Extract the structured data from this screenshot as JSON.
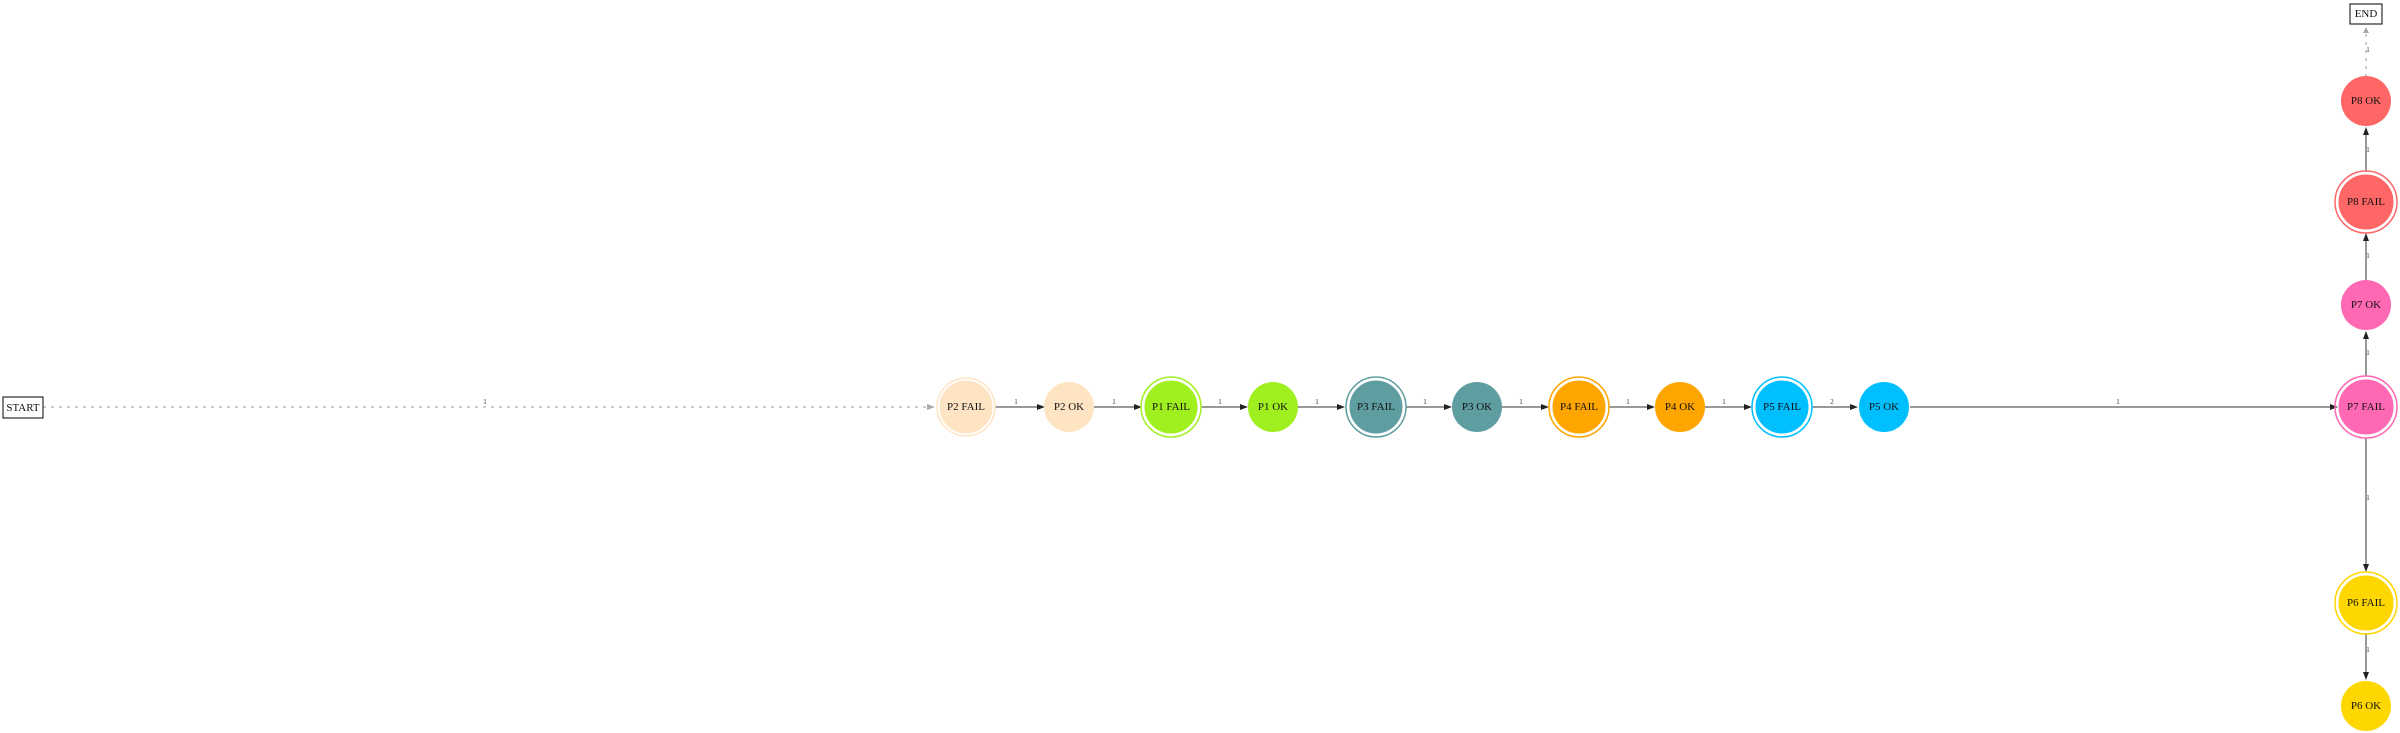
{
  "nodes": {
    "start": {
      "label": "START"
    },
    "end": {
      "label": "END"
    },
    "p2_fail": {
      "label": "P2 FAIL",
      "color": "#ffe4c4"
    },
    "p2_ok": {
      "label": "P2 OK",
      "color": "#ffe4c4"
    },
    "p1_fail": {
      "label": "P1 FAIL",
      "color": "#a0f020"
    },
    "p1_ok": {
      "label": "P1 OK",
      "color": "#a0f020"
    },
    "p3_fail": {
      "label": "P3 FAIL",
      "color": "#5f9ea0"
    },
    "p3_ok": {
      "label": "P3 OK",
      "color": "#5f9ea0"
    },
    "p4_fail": {
      "label": "P4 FAIL",
      "color": "#ffa500"
    },
    "p4_ok": {
      "label": "P4 OK",
      "color": "#ffa500"
    },
    "p5_fail": {
      "label": "P5 FAIL",
      "color": "#00bfff"
    },
    "p5_ok": {
      "label": "P5 OK",
      "color": "#00bfff"
    },
    "p7_fail": {
      "label": "P7 FAIL",
      "color": "#ff69b4"
    },
    "p7_ok": {
      "label": "P7 OK",
      "color": "#ff69b4"
    },
    "p8_fail": {
      "label": "P8 FAIL",
      "color": "#ff6666"
    },
    "p8_ok": {
      "label": "P8 OK",
      "color": "#ff6666"
    },
    "p6_fail": {
      "label": "P6 FAIL",
      "color": "#ffd700"
    },
    "p6_ok": {
      "label": "P6 OK",
      "color": "#ffd700"
    }
  },
  "edges": {
    "start_p2fail": "1",
    "p2fail_p2ok": "1",
    "p2ok_p1fail": "1",
    "p1fail_p1ok": "1",
    "p1ok_p3fail": "1",
    "p3fail_p3ok": "1",
    "p3ok_p4fail": "1",
    "p4fail_p4ok": "1",
    "p4ok_p5fail": "1",
    "p5fail_p5ok": "2",
    "p5ok_p7fail": "1",
    "p7fail_p7ok": "1",
    "p7ok_p8fail": "1",
    "p8fail_p8ok": "1",
    "p8ok_end": "1",
    "p7fail_p6fail": "1",
    "p6fail_p6ok": "1"
  }
}
